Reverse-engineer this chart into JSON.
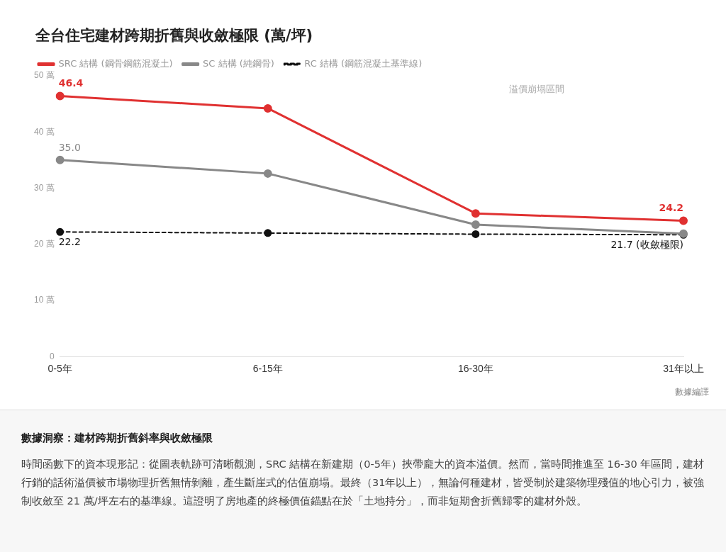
{
  "chart_data": {
    "type": "line",
    "title": "全台住宅建材跨期折舊與收斂極限 (萬/坪)",
    "categories": [
      "0-5年",
      "6-15年",
      "16-30年",
      "31年以上"
    ],
    "series": [
      {
        "name": "SRC 結構 (鋼骨鋼筋混凝土)",
        "color": "#e03131",
        "values": [
          46.4,
          44.2,
          25.5,
          24.2
        ],
        "value_labels": [
          "46.4",
          null,
          null,
          "24.2"
        ]
      },
      {
        "name": "SC 結構 (純鋼骨)",
        "color": "#888888",
        "values": [
          35.0,
          32.6,
          23.5,
          21.9
        ],
        "value_labels": [
          "35.0",
          null,
          null,
          null
        ]
      },
      {
        "name": "RC 結構 (鋼筋混凝土基準線)",
        "color": "#111111",
        "values": [
          22.2,
          22.0,
          21.8,
          21.7
        ],
        "value_labels": [
          "22.2",
          null,
          null,
          "21.7 (收斂極限)"
        ],
        "line_style": "dashed"
      }
    ],
    "ylim": [
      0,
      50
    ],
    "yticks": [
      0,
      {
        "value": 10,
        "label": "10 萬"
      },
      {
        "value": 20,
        "label": "20 萬"
      },
      {
        "value": 30,
        "label": "30 萬"
      },
      {
        "value": 40,
        "label": "40 萬"
      },
      {
        "value": 50,
        "label": "50 萬"
      }
    ],
    "grid": false,
    "legend": "top left",
    "marker": "circle",
    "annotations": [
      "溢價崩塌區間",
      "數據編譯",
      "數據洞察：建材跨期折舊斜率與收斂極限",
      "時間函數下的資本現形記：從圖表軌跡可清晰觀測，SRC 結構在新建期（0-5年）挾帶龐大的資本溢價。然而，當時間推進至 16-30 年區間，建材行銷的話術溢價被市場物理折舊無情剝離，產生斷崖式的估值崩塌。最終（31年以上），無論何種建材，皆受制於建築物理殘值的地心引力，被強制收斂至 21 萬/坪左右的基準線。這證明了房地產的終極價值錨點在於「土地持分」，而非短期會折舊歸零的建材外殼。"
    ]
  }
}
